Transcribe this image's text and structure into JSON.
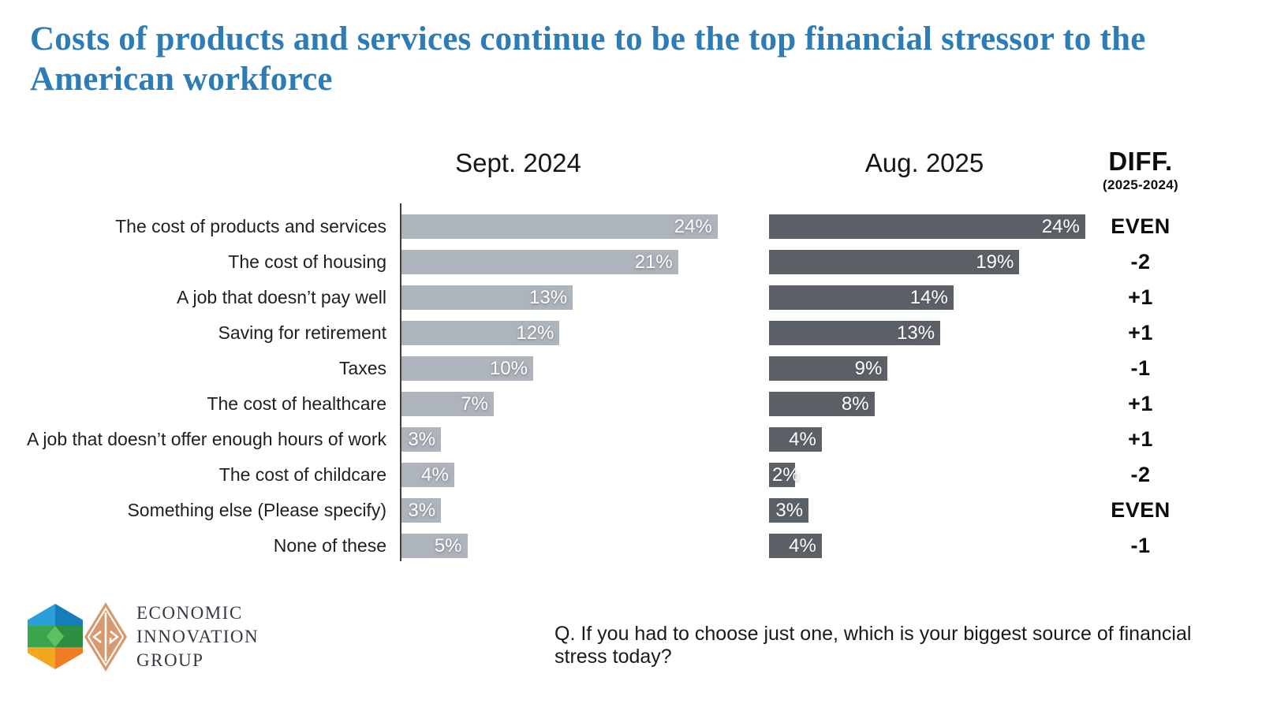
{
  "title": "Costs of products and services continue to be the top financial stressor to the American workforce",
  "columns": {
    "left_header": "Sept. 2024",
    "right_header": "Aug. 2025",
    "diff_header": "DIFF.",
    "diff_subheader": "(2025-2024)"
  },
  "chart_data": {
    "type": "bar",
    "orientation": "horizontal",
    "value_suffix": "%",
    "xlim": [
      0,
      25
    ],
    "grid": false,
    "categories": [
      "The cost of products and services",
      "The cost of housing",
      "A job that doesn’t pay well",
      "Saving for retirement",
      "Taxes",
      "The cost of healthcare",
      "A job that doesn’t offer enough hours of work",
      "The cost of childcare",
      "Something else (Please specify)",
      "None of these"
    ],
    "series": [
      {
        "name": "Sept. 2024",
        "color": "#aeb4bb",
        "values": [
          24,
          21,
          13,
          12,
          10,
          7,
          3,
          4,
          3,
          5
        ]
      },
      {
        "name": "Aug. 2025",
        "color": "#5c6167",
        "values": [
          24,
          19,
          14,
          13,
          9,
          8,
          4,
          2,
          3,
          4
        ]
      }
    ],
    "diff": [
      "EVEN",
      "-2",
      "+1",
      "+1",
      "-1",
      "+1",
      "+1",
      "-2",
      "EVEN",
      "-1"
    ]
  },
  "footer": {
    "question": "Q. If you had to choose just one, which is your biggest source of financial stress today?",
    "logo_line1": "ECONOMIC",
    "logo_line2": "INNOVATION",
    "logo_line3": "GROUP"
  },
  "colors": {
    "title": "#2e7cb6",
    "bar_sept": "#aeb4bb",
    "bar_aug": "#5c6167",
    "axis": "#404040"
  }
}
